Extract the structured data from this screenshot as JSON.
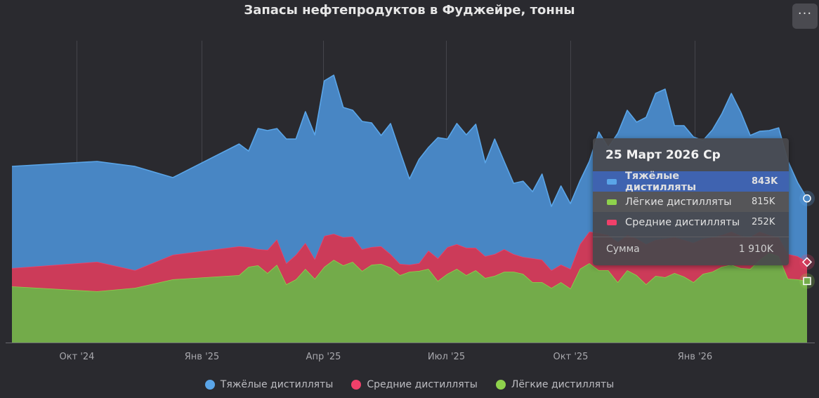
{
  "chart_data": {
    "type": "area",
    "stacked": true,
    "title": "Запасы нефтепродуктов в Фуджейре, тонны",
    "xlabel": "",
    "ylabel": "",
    "unit": "K",
    "grid": "vertical",
    "legend_position": "bottom",
    "x_tick_labels": [
      {
        "date": "2024-10-01",
        "label": "Окт '24"
      },
      {
        "date": "2025-01-01",
        "label": "Янв '25"
      },
      {
        "date": "2025-04-01",
        "label": "Апр '25"
      },
      {
        "date": "2025-07-01",
        "label": "Июл '25"
      },
      {
        "date": "2025-10-01",
        "label": "Окт '25"
      },
      {
        "date": "2026-01-01",
        "label": "Янв '26"
      }
    ],
    "ylim": [
      0,
      4000
    ],
    "x": [
      "2024-08-14",
      "2024-10-16",
      "2024-11-13",
      "2024-12-11",
      "2025-01-29",
      "2025-02-05",
      "2025-02-12",
      "2025-02-19",
      "2025-02-26",
      "2025-03-05",
      "2025-03-12",
      "2025-03-19",
      "2025-03-26",
      "2025-04-02",
      "2025-04-09",
      "2025-04-16",
      "2025-04-23",
      "2025-04-30",
      "2025-05-07",
      "2025-05-14",
      "2025-05-21",
      "2025-05-28",
      "2025-06-04",
      "2025-06-11",
      "2025-06-18",
      "2025-06-25",
      "2025-07-02",
      "2025-07-09",
      "2025-07-16",
      "2025-07-23",
      "2025-07-30",
      "2025-08-06",
      "2025-08-13",
      "2025-08-20",
      "2025-08-27",
      "2025-09-03",
      "2025-09-10",
      "2025-09-17",
      "2025-09-24",
      "2025-10-01",
      "2025-10-08",
      "2025-10-15",
      "2025-10-22",
      "2025-10-29",
      "2025-11-05",
      "2025-11-12",
      "2025-11-19",
      "2025-11-26",
      "2025-12-03",
      "2025-12-10",
      "2025-12-17",
      "2025-12-24",
      "2025-12-31",
      "2026-01-07",
      "2026-01-14",
      "2026-01-21",
      "2026-01-28",
      "2026-02-04",
      "2026-02-11",
      "2026-02-18",
      "2026-02-25",
      "2026-03-04",
      "2026-03-11",
      "2026-03-18",
      "2026-03-25"
    ],
    "series": [
      {
        "name": "Лёгкие дистилляты",
        "color": "#8ed24c",
        "values": [
          744,
          679,
          725,
          837,
          893,
          1004,
          1023,
          921,
          1032,
          772,
          837,
          977,
          846,
          1004,
          1097,
          1023,
          1070,
          949,
          1032,
          1042,
          995,
          893,
          939,
          949,
          977,
          818,
          911,
          977,
          893,
          958,
          856,
          884,
          939,
          939,
          911,
          800,
          800,
          725,
          800,
          716,
          977,
          1051,
          958,
          958,
          800,
          958,
          893,
          772,
          884,
          865,
          921,
          874,
          800,
          911,
          939,
          1004,
          1032,
          986,
          977,
          1097,
          1190,
          1144,
          846,
          837,
          815
        ]
      },
      {
        "name": "Средние дистилляты",
        "color": "#f0406a",
        "values": [
          242,
          391,
          233,
          326,
          381,
          260,
          214,
          307,
          335,
          279,
          326,
          344,
          260,
          409,
          344,
          372,
          335,
          288,
          233,
          233,
          177,
          149,
          93,
          102,
          242,
          298,
          353,
          326,
          363,
          298,
          288,
          288,
          298,
          233,
          223,
          316,
          298,
          233,
          233,
          260,
          326,
          419,
          493,
          465,
          530,
          465,
          484,
          530,
          474,
          512,
          474,
          484,
          521,
          465,
          456,
          419,
          437,
          428,
          419,
          372,
          233,
          251,
          326,
          307,
          252
        ]
      },
      {
        "name": "Тяжёлые дистилляты",
        "color": "#5aa5e8",
        "values": [
          1349,
          1330,
          1376,
          1023,
          1358,
          1274,
          1600,
          1581,
          1469,
          1646,
          1535,
          1739,
          1646,
          2055,
          2102,
          1721,
          1674,
          1693,
          1646,
          1469,
          1730,
          1488,
          1135,
          1376,
          1367,
          1600,
          1432,
          1600,
          1497,
          1637,
          1237,
          1525,
          1163,
          939,
          1004,
          884,
          1135,
          846,
          1042,
          865,
          837,
          930,
          1339,
          1163,
          1442,
          1655,
          1544,
          1683,
          1944,
          1981,
          1479,
          1516,
          1404,
          1302,
          1423,
          1609,
          1832,
          1637,
          1349,
          1330,
          1386,
          1451,
          1228,
          977,
          843
        ]
      }
    ]
  },
  "legend": [
    {
      "label": "Тяжёлые дистилляты",
      "color": "#5aa5e8"
    },
    {
      "label": "Средние дистилляты",
      "color": "#f0406a"
    },
    {
      "label": "Лёгкие дистилляты",
      "color": "#8ed24c"
    }
  ],
  "tooltip": {
    "date": "25 Март 2026 Ср",
    "rows": [
      {
        "label": "Тяжёлые дистилляты",
        "value": "843K",
        "color": "#5aa5e8"
      },
      {
        "label": "Лёгкие дистилляты",
        "value": "815K",
        "color": "#8ed24c"
      },
      {
        "label": "Средние дистилляты",
        "value": "252K",
        "color": "#f0406a"
      }
    ],
    "sum_label": "Сумма",
    "sum_value": "1 910K"
  },
  "menu": {
    "label": "···",
    "icon": "more-horizontal-icon"
  }
}
